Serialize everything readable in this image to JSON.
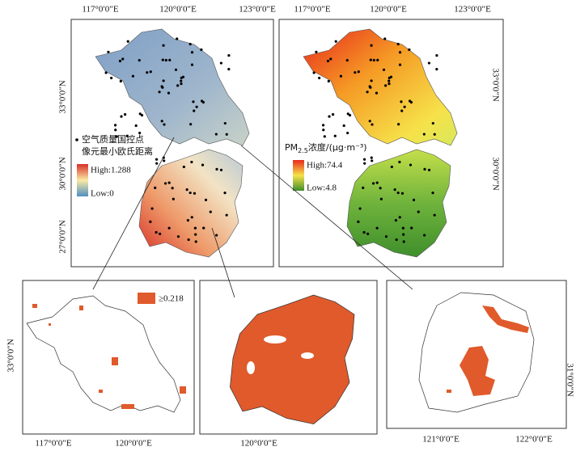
{
  "top_left": {
    "x_labels": [
      "117°0′0″E",
      "120°0′0″E",
      "123°0′0″E"
    ],
    "y_labels": [
      "33°0′0″N",
      "30°0′0″N",
      "27°0′0″N"
    ],
    "legend": {
      "point_label": "空气质量国控点",
      "title": "像元最小欧氏距离",
      "high": "High:1.288",
      "low": "Low:0"
    }
  },
  "top_right": {
    "x_labels": [
      "117°0′0″E",
      "120°0′0″E",
      "123°0′0″E"
    ],
    "y_labels": [
      "33°0′0″N",
      "30°0′0″N"
    ],
    "legend": {
      "title_prefix": "PM",
      "title_subscript": "2.5",
      "title_suffix": "浓度/(μg·m⁻³)",
      "high": "High:74.4",
      "low": "Low:4.8"
    }
  },
  "bottom_left": {
    "legend": "≥0.218",
    "x_labels": [
      "117°0′0″E",
      "120°0′0″E"
    ],
    "y_label": "33°0′0″N"
  },
  "bottom_middle": {
    "x_label": "120°0′0″E"
  },
  "bottom_right": {
    "x_labels": [
      "121°0′0″E",
      "122°0′0″E"
    ],
    "y_label": "31°0′0″N"
  }
}
